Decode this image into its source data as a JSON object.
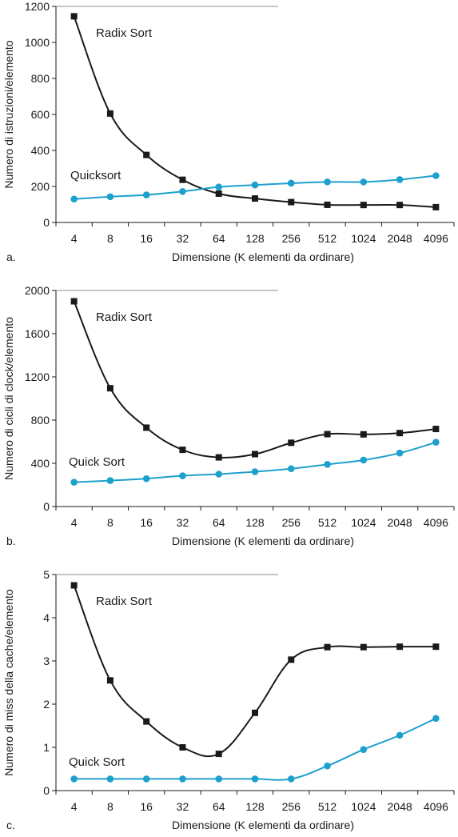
{
  "chart_data": [
    {
      "type": "line",
      "panel_label": "a.",
      "xlabel": "Dimensione (K elementi da ordinare)",
      "ylabel": "Numero di istruzioni/elemento",
      "categories": [
        "4",
        "8",
        "16",
        "32",
        "64",
        "128",
        "256",
        "512",
        "1024",
        "2048",
        "4096"
      ],
      "ylim": [
        0,
        1200
      ],
      "yticks": [
        "0",
        "200",
        "400",
        "600",
        "800",
        "1000",
        "1200"
      ],
      "series": [
        {
          "name": "Radix Sort",
          "color": "#1a1a1a",
          "marker": "square",
          "values": [
            1145,
            605,
            375,
            237,
            160,
            133,
            113,
            98,
            97,
            97,
            85
          ]
        },
        {
          "name": "Quicksort",
          "color": "#1ea0cd",
          "marker": "circle",
          "values": [
            130,
            143,
            153,
            172,
            197,
            208,
            218,
            225,
            225,
            238,
            260
          ]
        }
      ]
    },
    {
      "type": "line",
      "panel_label": "b.",
      "xlabel": "Dimensione (K elementi da ordinare)",
      "ylabel": "Numero di cicli di clock/elemento",
      "categories": [
        "4",
        "8",
        "16",
        "32",
        "64",
        "128",
        "256",
        "512",
        "1024",
        "2048",
        "4096"
      ],
      "ylim": [
        0,
        2000
      ],
      "yticks": [
        "0",
        "400",
        "800",
        "1200",
        "1600",
        "2000"
      ],
      "series": [
        {
          "name": "Radix Sort",
          "color": "#1a1a1a",
          "marker": "square",
          "values": [
            1900,
            1095,
            730,
            525,
            455,
            485,
            590,
            670,
            668,
            680,
            718
          ]
        },
        {
          "name": "Quick Sort",
          "color": "#1ea0cd",
          "marker": "circle",
          "values": [
            225,
            240,
            258,
            285,
            300,
            322,
            350,
            390,
            430,
            495,
            595
          ]
        }
      ]
    },
    {
      "type": "line",
      "panel_label": "c.",
      "xlabel": "Dimensione (K elementi da ordinare)",
      "ylabel": "Numero di miss della cache/elemento",
      "categories": [
        "4",
        "8",
        "16",
        "32",
        "64",
        "128",
        "256",
        "512",
        "1024",
        "2048",
        "4096"
      ],
      "ylim": [
        0,
        5
      ],
      "yticks": [
        "0",
        "1",
        "2",
        "3",
        "4",
        "5"
      ],
      "series": [
        {
          "name": "Radix Sort",
          "color": "#1a1a1a",
          "marker": "square",
          "values": [
            4.75,
            2.55,
            1.6,
            1.0,
            0.85,
            1.8,
            3.03,
            3.32,
            3.32,
            3.33,
            3.33
          ]
        },
        {
          "name": "Quick Sort",
          "color": "#1ea0cd",
          "marker": "circle",
          "values": [
            0.27,
            0.27,
            0.27,
            0.27,
            0.27,
            0.27,
            0.27,
            0.57,
            0.95,
            1.28,
            1.67
          ]
        }
      ]
    }
  ]
}
